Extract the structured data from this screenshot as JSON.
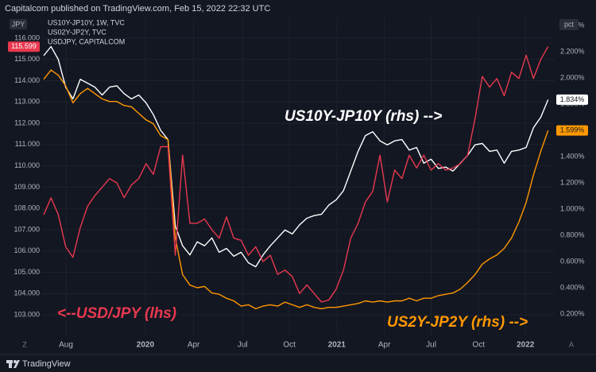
{
  "header": "Capitalcom published on TradingView.com, Feb 15, 2022 22:32 UTC",
  "footer": {
    "brand": "TradingView",
    "left_button": "Z",
    "right_button": "A"
  },
  "chart_data": {
    "type": "line",
    "left_axis_label": "JPY",
    "right_axis_label": "pct",
    "annotations": [
      {
        "text": "US10Y-JP10Y (rhs) -->",
        "color": "#ffffff"
      },
      {
        "text": "<--USD/JPY (lhs)",
        "color": "#e8384f"
      },
      {
        "text": "US2Y-JP2Y (rhs) -->",
        "color": "#ff9800"
      }
    ],
    "xlim": [
      -0.33,
      69.9
    ],
    "xticks": [
      {
        "value": 3.04,
        "label": "Aug"
      },
      {
        "value": 13.9,
        "label": "2020"
      },
      {
        "value": 20.5,
        "label": "Apr"
      },
      {
        "value": 27.2,
        "label": "Jul"
      },
      {
        "value": 33.6,
        "label": "Oct"
      },
      {
        "value": 40.1,
        "label": "2021"
      },
      {
        "value": 46.6,
        "label": "Apr"
      },
      {
        "value": 53,
        "label": "Jul"
      },
      {
        "value": 59.5,
        "label": "Oct"
      },
      {
        "value": 65.9,
        "label": "2022"
      }
    ],
    "ylim": [
      102.03,
      116.97
    ],
    "yticks": [
      {
        "value": 103,
        "label": "103.000"
      },
      {
        "value": 104,
        "label": "104.000"
      },
      {
        "value": 105,
        "label": "105.000"
      },
      {
        "value": 106,
        "label": "106.000"
      },
      {
        "value": 107,
        "label": "107.000"
      },
      {
        "value": 108,
        "label": "108.000"
      },
      {
        "value": 109,
        "label": "109.000"
      },
      {
        "value": 110,
        "label": "110.000"
      },
      {
        "value": 111,
        "label": "111.000"
      },
      {
        "value": 112,
        "label": "112.000"
      },
      {
        "value": 113,
        "label": "113.000"
      },
      {
        "value": 114,
        "label": "114.000"
      },
      {
        "value": 115,
        "label": "115.000"
      },
      {
        "value": 116,
        "label": "116.000"
      }
    ],
    "y2lim": [
      0.036,
      2.461
    ],
    "y2ticks": [
      {
        "value": 0.2,
        "label": "0.200%"
      },
      {
        "value": 0.4,
        "label": "0.400%"
      },
      {
        "value": 0.6,
        "label": "0.600%"
      },
      {
        "value": 0.8,
        "label": "0.800%"
      },
      {
        "value": 1.0,
        "label": "1.000%"
      },
      {
        "value": 1.2,
        "label": "1.200%"
      },
      {
        "value": 1.4,
        "label": "1.400%"
      },
      {
        "value": 1.6,
        "label": "1.600%"
      },
      {
        "value": 1.8,
        "label": "1.800%"
      },
      {
        "value": 2.0,
        "label": "2.000%"
      },
      {
        "value": 2.2,
        "label": "2.200%"
      },
      {
        "value": 2.4,
        "label": "2.400%"
      }
    ],
    "grid": true,
    "series": [
      {
        "name": "US10Y-JP10Y, 1W, TVC",
        "color": "#ffffff",
        "axis": "y2",
        "price_label": "1.834%",
        "values": [
          2.17,
          2.24,
          2.14,
          1.93,
          1.84,
          1.99,
          1.96,
          1.93,
          1.87,
          1.93,
          1.94,
          1.88,
          1.84,
          1.87,
          1.81,
          1.72,
          1.6,
          1.53,
          0.87,
          0.72,
          0.65,
          0.75,
          0.72,
          0.78,
          0.67,
          0.7,
          0.64,
          0.67,
          0.59,
          0.56,
          0.65,
          0.72,
          0.78,
          0.84,
          0.81,
          0.88,
          0.93,
          0.95,
          0.96,
          1.03,
          1.07,
          1.14,
          1.29,
          1.44,
          1.56,
          1.59,
          1.52,
          1.49,
          1.52,
          1.53,
          1.45,
          1.47,
          1.35,
          1.38,
          1.31,
          1.32,
          1.29,
          1.35,
          1.41,
          1.49,
          1.5,
          1.44,
          1.45,
          1.35,
          1.44,
          1.45,
          1.47,
          1.62,
          1.7,
          1.834
        ]
      },
      {
        "name": "US02Y-JP2Y, TVC",
        "color": "#ff9800",
        "axis": "y2",
        "price_label": "1.599%",
        "values": [
          1.99,
          2.06,
          2.02,
          1.94,
          1.81,
          1.88,
          1.92,
          1.88,
          1.84,
          1.82,
          1.82,
          1.79,
          1.78,
          1.73,
          1.68,
          1.65,
          1.56,
          1.53,
          0.78,
          0.5,
          0.42,
          0.4,
          0.41,
          0.36,
          0.35,
          0.32,
          0.3,
          0.26,
          0.27,
          0.24,
          0.26,
          0.27,
          0.26,
          0.29,
          0.27,
          0.25,
          0.27,
          0.25,
          0.24,
          0.25,
          0.25,
          0.26,
          0.27,
          0.28,
          0.3,
          0.29,
          0.3,
          0.29,
          0.3,
          0.3,
          0.32,
          0.3,
          0.32,
          0.32,
          0.34,
          0.35,
          0.36,
          0.39,
          0.44,
          0.5,
          0.58,
          0.62,
          0.65,
          0.7,
          0.78,
          0.9,
          1.05,
          1.26,
          1.44,
          1.599
        ]
      },
      {
        "name": "USDJPY, CAPITALCOM",
        "color": "#e8384f",
        "axis": "y",
        "price_label": "115.599",
        "values": [
          107.7,
          108.5,
          107.7,
          106.2,
          105.7,
          107.1,
          108.1,
          108.6,
          109.0,
          109.4,
          109.2,
          108.5,
          109.1,
          109.4,
          110.1,
          109.6,
          110.9,
          110.9,
          105.8,
          110.5,
          107.3,
          107.3,
          107.5,
          107.0,
          106.6,
          107.6,
          106.6,
          106.5,
          105.8,
          106.2,
          105.5,
          105.8,
          104.9,
          105.1,
          104.8,
          104.0,
          104.4,
          104.0,
          103.6,
          103.7,
          104.2,
          105.1,
          106.6,
          107.3,
          108.3,
          108.8,
          110.5,
          108.3,
          109.8,
          109.4,
          110.5,
          109.9,
          110.5,
          109.8,
          110.1,
          109.8,
          109.9,
          110.1,
          110.5,
          112.2,
          114.2,
          113.7,
          114.1,
          113.3,
          114.4,
          114.1,
          115.2,
          114.1,
          115.0,
          115.599
        ]
      }
    ]
  }
}
